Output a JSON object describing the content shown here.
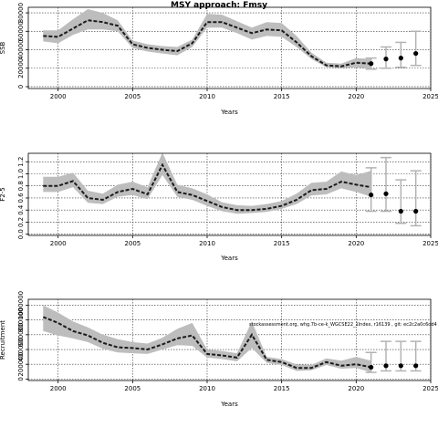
{
  "title": "MSY approach: Fmsy",
  "colors": {
    "band": "#bdbdbd",
    "line": "#1a1a1a",
    "whisker": "#b3b3b3",
    "grid": "#333333",
    "point": "#000000"
  },
  "chart_data": [
    {
      "type": "line",
      "title": "MSY approach: Fmsy",
      "ylabel": "SSB",
      "xlabel": "Years",
      "xlim": [
        1998,
        2025
      ],
      "ylim": [
        -2000,
        86000
      ],
      "xticks": [
        "2000",
        "2005",
        "2010",
        "2015",
        "2020",
        "2025"
      ],
      "yticks": [
        "0",
        "20000",
        "40000",
        "60000",
        "80000"
      ],
      "grid": true,
      "x": [
        1999,
        2000,
        2001,
        2002,
        2003,
        2004,
        2005,
        2006,
        2007,
        2008,
        2009,
        2010,
        2011,
        2012,
        2013,
        2014,
        2015,
        2016,
        2017,
        2018,
        2019,
        2020,
        2021
      ],
      "median": [
        55000,
        54000,
        63000,
        72000,
        70000,
        66000,
        46000,
        42000,
        40000,
        38500,
        47000,
        70000,
        70000,
        64000,
        58000,
        62000,
        61000,
        48000,
        33000,
        23000,
        22000,
        26000,
        25000
      ],
      "lower": [
        49000,
        47000,
        56000,
        62000,
        62000,
        60000,
        42000,
        38000,
        36000,
        34000,
        43000,
        64000,
        64000,
        58000,
        51000,
        55000,
        54000,
        43000,
        30000,
        21000,
        20000,
        21000,
        19000
      ],
      "upper": [
        61000,
        61000,
        73000,
        84000,
        80000,
        72000,
        50000,
        46000,
        44000,
        43000,
        51000,
        79000,
        78000,
        71000,
        64000,
        70000,
        69000,
        55000,
        37000,
        26000,
        25000,
        31000,
        30000
      ],
      "projection": [
        {
          "x": 2021,
          "median": 25000,
          "lower": 19000,
          "upper": 31000
        },
        {
          "x": 2022,
          "median": 30000,
          "lower": 20000,
          "upper": 43000
        },
        {
          "x": 2023,
          "median": 31000,
          "lower": 21000,
          "upper": 48000
        },
        {
          "x": 2024,
          "median": 36000,
          "lower": 23000,
          "upper": 60000
        }
      ]
    },
    {
      "type": "line",
      "ylabel": "F2-5",
      "xlabel": "Years",
      "xlim": [
        1998,
        2025
      ],
      "ylim": [
        -0.02,
        1.34
      ],
      "xticks": [
        "2000",
        "2005",
        "2010",
        "2015",
        "2020",
        "2025"
      ],
      "yticks": [
        "0.0",
        "0.2",
        "0.4",
        "0.6",
        "0.8",
        "1.0",
        "1.2"
      ],
      "grid": true,
      "x": [
        1999,
        2000,
        2001,
        2002,
        2003,
        2004,
        2005,
        2006,
        2007,
        2008,
        2009,
        2010,
        2011,
        2012,
        2013,
        2014,
        2015,
        2016,
        2017,
        2018,
        2019,
        2020,
        2021
      ],
      "median": [
        0.8,
        0.8,
        0.88,
        0.6,
        0.57,
        0.7,
        0.75,
        0.66,
        1.15,
        0.7,
        0.65,
        0.55,
        0.45,
        0.4,
        0.4,
        0.42,
        0.47,
        0.57,
        0.73,
        0.75,
        0.87,
        0.82,
        0.78
      ],
      "lower": [
        0.7,
        0.7,
        0.78,
        0.52,
        0.5,
        0.62,
        0.65,
        0.58,
        0.98,
        0.62,
        0.57,
        0.47,
        0.38,
        0.34,
        0.35,
        0.37,
        0.42,
        0.5,
        0.64,
        0.66,
        0.76,
        0.7,
        0.62
      ],
      "upper": [
        0.95,
        0.95,
        1.02,
        0.72,
        0.67,
        0.82,
        0.87,
        0.78,
        1.35,
        0.82,
        0.76,
        0.66,
        0.53,
        0.48,
        0.47,
        0.5,
        0.55,
        0.67,
        0.85,
        0.87,
        1.04,
        0.98,
        1.05
      ],
      "projection": [
        {
          "x": 2021,
          "median": 0.65,
          "lower": 0.38,
          "upper": 1.1
        },
        {
          "x": 2022,
          "median": 0.67,
          "lower": 0.38,
          "upper": 1.27
        },
        {
          "x": 2023,
          "median": 0.38,
          "lower": 0.18,
          "upper": 0.9
        },
        {
          "x": 2024,
          "median": 0.38,
          "lower": 0.14,
          "upper": 1.05
        }
      ]
    },
    {
      "type": "line",
      "ylabel": "Recruitment",
      "xlabel": "Years",
      "xlim": [
        1998,
        2025
      ],
      "ylim": [
        -20000,
        1080000
      ],
      "xticks": [
        "2000",
        "2005",
        "2010",
        "2015",
        "2020",
        "2025"
      ],
      "yticks": [
        "0",
        "200000",
        "400000",
        "600000",
        "800000",
        "1000000"
      ],
      "grid": true,
      "annotation": "stockassessment.org, whg.7b-ce-k_WGCSE22_1Index, r16139 , git: ec2c2a0c6dd4",
      "x": [
        1999,
        2000,
        2001,
        2002,
        2003,
        2004,
        2005,
        2006,
        2007,
        2008,
        2009,
        2010,
        2011,
        2012,
        2013,
        2014,
        2015,
        2016,
        2017,
        2018,
        2019,
        2020,
        2021
      ],
      "median": [
        840000,
        760000,
        650000,
        590000,
        490000,
        430000,
        420000,
        400000,
        470000,
        550000,
        590000,
        340000,
        320000,
        290000,
        600000,
        260000,
        230000,
        150000,
        150000,
        230000,
        180000,
        200000,
        160000
      ],
      "lower": [
        650000,
        590000,
        550000,
        500000,
        410000,
        360000,
        350000,
        340000,
        400000,
        460000,
        450000,
        290000,
        270000,
        240000,
        420000,
        220000,
        190000,
        110000,
        120000,
        190000,
        140000,
        150000,
        90000
      ],
      "upper": [
        1000000,
        900000,
        780000,
        700000,
        600000,
        540000,
        500000,
        480000,
        560000,
        680000,
        760000,
        400000,
        380000,
        350000,
        780000,
        300000,
        270000,
        200000,
        190000,
        280000,
        250000,
        300000,
        250000
      ],
      "projection": [
        {
          "x": 2021,
          "median": 160000,
          "lower": 90000,
          "upper": 360000
        },
        {
          "x": 2022,
          "median": 180000,
          "lower": 110000,
          "upper": 510000
        },
        {
          "x": 2023,
          "median": 180000,
          "lower": 110000,
          "upper": 510000
        },
        {
          "x": 2024,
          "median": 180000,
          "lower": 110000,
          "upper": 510000
        }
      ]
    }
  ]
}
